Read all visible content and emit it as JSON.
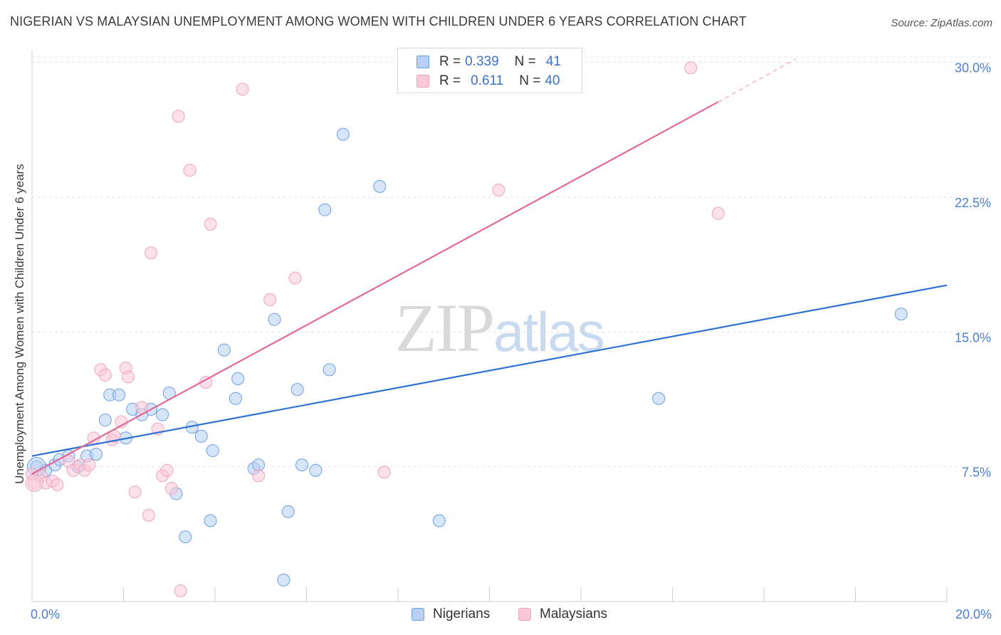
{
  "header": {
    "title": "NIGERIAN VS MALAYSIAN UNEMPLOYMENT AMONG WOMEN WITH CHILDREN UNDER 6 YEARS CORRELATION CHART",
    "source": "Source: ZipAtlas.com"
  },
  "watermark": {
    "zip": "ZIP",
    "atlas": "atlas"
  },
  "legend": {
    "series1": {
      "r_label": "R = ",
      "r_value": "0.339",
      "n_label": "N = ",
      "n_value": "41",
      "color": "#a9c7f0"
    },
    "series2": {
      "r_label": "R = ",
      "r_value": "0.611",
      "n_label": "N = ",
      "n_value": "40",
      "color": "#f7bcd0"
    }
  },
  "bottom_legend": {
    "nigerians": "Nigerians",
    "malaysians": "Malaysians"
  },
  "chart_data": {
    "type": "scatter",
    "title": "NIGERIAN VS MALAYSIAN UNEMPLOYMENT AMONG WOMEN WITH CHILDREN UNDER 6 YEARS CORRELATION CHART",
    "xlabel": "",
    "ylabel": "Unemployment Among Women with Children Under 6 years",
    "xlim": [
      0,
      20
    ],
    "ylim": [
      0,
      30.7
    ],
    "x_tick_labels": [
      "0.0%",
      "20.0%"
    ],
    "y_ticks": [
      7.5,
      15.0,
      22.5,
      30.0
    ],
    "y_tick_labels": [
      "7.5%",
      "15.0%",
      "22.5%",
      "30.0%"
    ],
    "grid": true,
    "series": [
      {
        "name": "Nigerians",
        "color": "#6d9fe4",
        "fill": "#b7d0f3",
        "line_color": "#2e72d2",
        "trend": {
          "x": [
            0,
            20
          ],
          "y": [
            8.1,
            17.6
          ]
        },
        "points": [
          [
            0.1,
            7.5
          ],
          [
            0.3,
            7.3
          ],
          [
            0.5,
            7.6
          ],
          [
            0.6,
            7.9
          ],
          [
            0.8,
            8.1
          ],
          [
            1.0,
            7.5
          ],
          [
            1.2,
            8.1
          ],
          [
            1.4,
            8.2
          ],
          [
            1.6,
            10.1
          ],
          [
            1.7,
            11.5
          ],
          [
            1.9,
            11.5
          ],
          [
            2.05,
            9.1
          ],
          [
            2.2,
            10.7
          ],
          [
            2.4,
            10.4
          ],
          [
            2.6,
            10.7
          ],
          [
            2.85,
            10.4
          ],
          [
            3.0,
            11.6
          ],
          [
            3.15,
            6.0
          ],
          [
            3.35,
            3.6
          ],
          [
            3.5,
            9.7
          ],
          [
            3.7,
            9.2
          ],
          [
            3.9,
            4.5
          ],
          [
            3.95,
            8.4
          ],
          [
            4.2,
            14.0
          ],
          [
            4.45,
            11.3
          ],
          [
            4.5,
            12.4
          ],
          [
            4.85,
            7.4
          ],
          [
            4.95,
            7.6
          ],
          [
            5.3,
            15.7
          ],
          [
            5.5,
            1.2
          ],
          [
            5.6,
            5.0
          ],
          [
            5.8,
            11.8
          ],
          [
            5.9,
            7.6
          ],
          [
            6.2,
            7.3
          ],
          [
            6.4,
            21.8
          ],
          [
            6.5,
            12.9
          ],
          [
            6.8,
            26.0
          ],
          [
            7.6,
            23.1
          ],
          [
            8.9,
            4.5
          ],
          [
            13.7,
            11.3
          ],
          [
            19.0,
            16.0
          ]
        ]
      },
      {
        "name": "Malaysians",
        "color": "#eea4bc",
        "fill": "#f9c9d9",
        "line_color": "#e2699a",
        "trend": {
          "x": [
            0,
            15
          ],
          "y": [
            7.1,
            27.8
          ]
        },
        "trend_dashed": {
          "x": [
            15,
            16.7
          ],
          "y": [
            27.8,
            30.2
          ]
        },
        "points": [
          [
            0.05,
            6.6
          ],
          [
            0.2,
            7.0
          ],
          [
            0.3,
            6.6
          ],
          [
            0.45,
            6.7
          ],
          [
            0.55,
            6.5
          ],
          [
            0.8,
            7.8
          ],
          [
            0.9,
            7.3
          ],
          [
            1.05,
            7.6
          ],
          [
            1.15,
            7.3
          ],
          [
            1.25,
            7.6
          ],
          [
            1.35,
            9.1
          ],
          [
            1.5,
            12.9
          ],
          [
            1.6,
            12.6
          ],
          [
            1.75,
            9.0
          ],
          [
            1.8,
            9.2
          ],
          [
            1.95,
            10.0
          ],
          [
            2.05,
            13.0
          ],
          [
            2.1,
            12.5
          ],
          [
            2.25,
            6.1
          ],
          [
            2.4,
            10.8
          ],
          [
            2.55,
            4.8
          ],
          [
            2.6,
            19.4
          ],
          [
            2.75,
            9.6
          ],
          [
            2.85,
            7.0
          ],
          [
            2.95,
            7.3
          ],
          [
            3.05,
            6.3
          ],
          [
            3.2,
            27.0
          ],
          [
            3.25,
            0.6
          ],
          [
            3.45,
            24.0
          ],
          [
            3.8,
            12.2
          ],
          [
            3.9,
            21.0
          ],
          [
            4.6,
            28.5
          ],
          [
            4.95,
            7.0
          ],
          [
            5.2,
            16.8
          ],
          [
            5.75,
            18.0
          ],
          [
            7.7,
            7.2
          ],
          [
            10.2,
            22.9
          ],
          [
            14.4,
            29.7
          ],
          [
            15.0,
            21.6
          ],
          [
            0.0,
            7.1
          ]
        ]
      }
    ]
  }
}
